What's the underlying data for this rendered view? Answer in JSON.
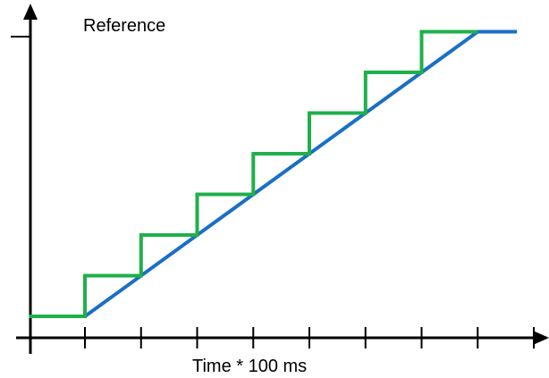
{
  "chart_data": {
    "type": "line",
    "title": "",
    "xlabel": "Time * 100 ms",
    "ylabel": "Reference",
    "xlim": [
      -1,
      9
    ],
    "ylim": [
      -0.5,
      8.5
    ],
    "x_ticks": [
      0,
      1,
      2,
      3,
      4,
      5,
      6,
      7,
      8
    ],
    "grid": false,
    "legend": "none",
    "series": [
      {
        "color": "#1a6fc4",
        "style": "linear ramp",
        "points": [
          [
            0,
            0
          ],
          [
            7,
            7
          ],
          [
            7.7,
            7
          ]
        ]
      },
      {
        "color": "#1fb04a",
        "style": "staircase",
        "points": [
          [
            -1,
            0
          ],
          [
            0,
            0
          ],
          [
            0,
            1
          ],
          [
            1,
            1
          ],
          [
            1,
            2
          ],
          [
            2,
            2
          ],
          [
            2,
            3
          ],
          [
            3,
            3
          ],
          [
            3,
            4
          ],
          [
            4,
            4
          ],
          [
            4,
            5
          ],
          [
            5,
            5
          ],
          [
            5,
            6
          ],
          [
            6,
            6
          ],
          [
            6,
            7
          ],
          [
            7,
            7
          ]
        ]
      }
    ]
  },
  "axes": {
    "color": "#000000"
  }
}
